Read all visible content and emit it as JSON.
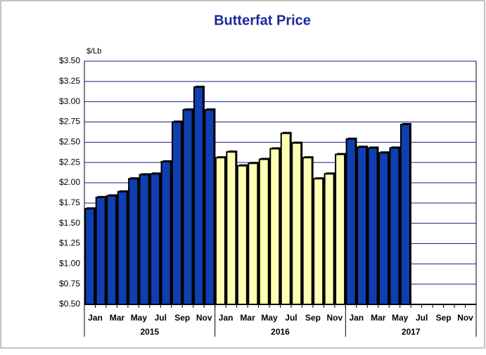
{
  "chart_data": {
    "type": "bar",
    "title": "Butterfat Price",
    "y_label": "$/Lb",
    "categories": [
      "Jan",
      null,
      "Mar",
      null,
      "May",
      null,
      "Jul",
      null,
      "Sep",
      null,
      "Nov",
      null,
      "Jan",
      null,
      "Mar",
      null,
      "May",
      null,
      "Jul",
      null,
      "Sep",
      null,
      "Nov",
      null,
      "Jan",
      null,
      "Mar",
      null,
      "May",
      null,
      "Jul",
      null,
      "Sep",
      null,
      "Nov",
      null
    ],
    "years": [
      "2015",
      "2016",
      "2017"
    ],
    "year_colors": [
      "#0f3fb0",
      "#ffffb3",
      "#0f3fb0"
    ],
    "values": [
      1.68,
      1.82,
      1.84,
      1.89,
      2.05,
      2.1,
      2.11,
      2.26,
      2.75,
      2.9,
      3.18,
      2.9,
      2.31,
      2.38,
      2.21,
      2.24,
      2.29,
      2.42,
      2.61,
      2.49,
      2.31,
      2.05,
      2.11,
      2.35,
      2.54,
      2.44,
      2.43,
      2.37,
      2.43,
      2.72,
      null,
      null,
      null,
      null,
      null,
      null
    ],
    "ylim": [
      0.5,
      3.5
    ],
    "yticks": [
      {
        "value": 0.5,
        "label": "$0.50"
      },
      {
        "value": 0.75,
        "label": "$0.75"
      },
      {
        "value": 1.0,
        "label": "$1.00"
      },
      {
        "value": 1.25,
        "label": "$1.25"
      },
      {
        "value": 1.5,
        "label": "$1.50"
      },
      {
        "value": 1.75,
        "label": "$1.75"
      },
      {
        "value": 2.0,
        "label": "$2.00"
      },
      {
        "value": 2.25,
        "label": "$2.25"
      },
      {
        "value": 2.5,
        "label": "$2.50"
      },
      {
        "value": 2.75,
        "label": "$2.75"
      },
      {
        "value": 3.0,
        "label": "$3.00"
      },
      {
        "value": 3.25,
        "label": "$3.25"
      },
      {
        "value": 3.5,
        "label": "$3.50"
      }
    ],
    "grid": true
  }
}
